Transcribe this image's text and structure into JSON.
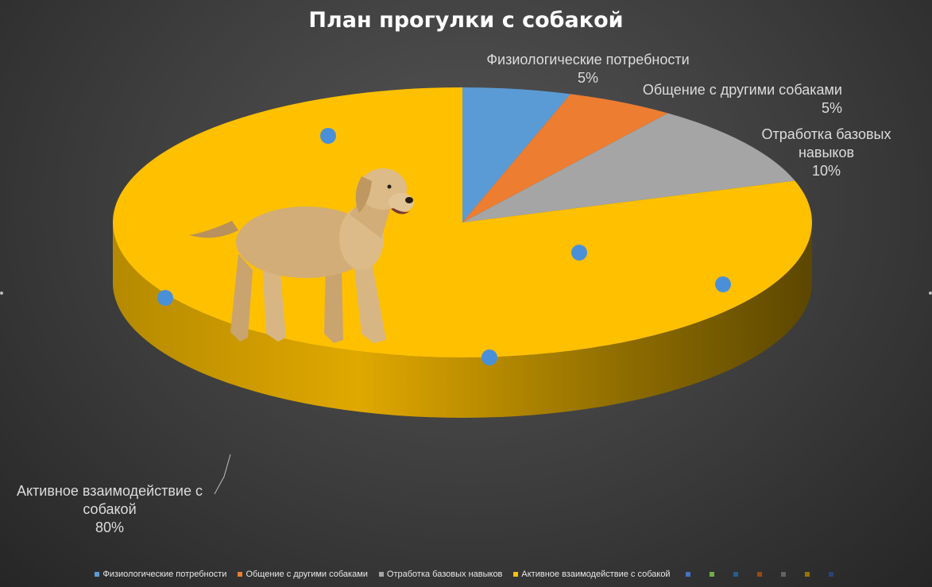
{
  "chart_data": {
    "type": "pie",
    "title": "План прогулки с собакой",
    "categories": [
      "Физиологические потребности",
      "Общение с другими собаками",
      "Отработка базовых навыков",
      "Активное взаимодействие с собакой"
    ],
    "values": [
      5,
      5,
      10,
      80
    ],
    "value_labels": [
      "5%",
      "5%",
      "10%",
      "80%"
    ],
    "colors": [
      "#5b9bd5",
      "#ed7d31",
      "#a5a5a5",
      "#ffc000"
    ],
    "legend": "bottom",
    "extra_legend_colors": [
      "#4472c4",
      "#70ad47",
      "#255e91",
      "#9e480e",
      "#636363",
      "#997300",
      "#264478"
    ]
  }
}
